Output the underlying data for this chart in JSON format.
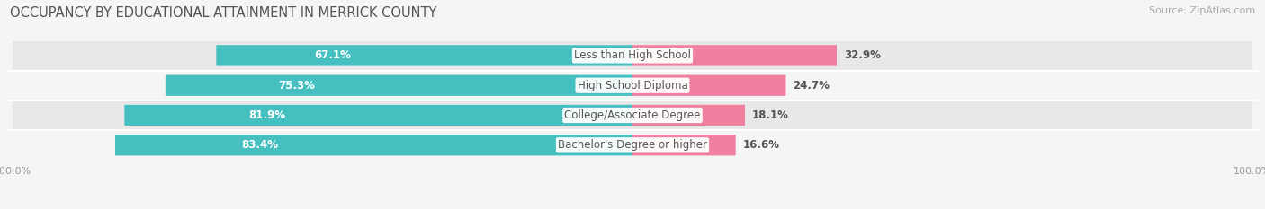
{
  "title": "OCCUPANCY BY EDUCATIONAL ATTAINMENT IN MERRICK COUNTY",
  "source": "Source: ZipAtlas.com",
  "categories": [
    "Less than High School",
    "High School Diploma",
    "College/Associate Degree",
    "Bachelor's Degree or higher"
  ],
  "owner_values": [
    67.1,
    75.3,
    81.9,
    83.4
  ],
  "renter_values": [
    32.9,
    24.7,
    18.1,
    16.6
  ],
  "owner_color": "#45bfbf",
  "renter_color": "#f07fa0",
  "row_bg_colors": [
    "#e8e8e8",
    "#f5f5f5"
  ],
  "background_color": "#f5f5f5",
  "title_fontsize": 10.5,
  "source_fontsize": 8,
  "value_label_fontsize": 8.5,
  "category_fontsize": 8.5,
  "legend_fontsize": 8.5,
  "axis_fontsize": 8,
  "bar_height": 0.62,
  "owner_label_color": "white",
  "renter_label_color": "#555555",
  "category_text_color": "#555555",
  "axis_tick_color": "#999999",
  "title_color": "#555555"
}
